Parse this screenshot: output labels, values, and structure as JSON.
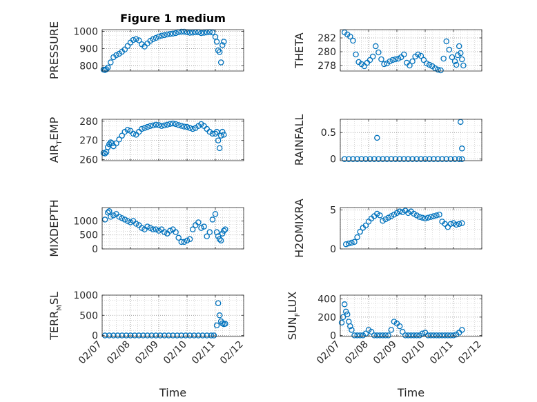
{
  "figure": {
    "title": "Figure 1 medium",
    "marker_color": "#0072BD",
    "grid_color": "#b0b0b0",
    "axes_color": "#262626",
    "xlabel": "Time",
    "x_tick_labels": [
      "02/07",
      "02/08",
      "02/09",
      "02/10",
      "02/11",
      "02/12"
    ]
  },
  "chart_data": [
    {
      "type": "scatter",
      "title": "Figure 1 medium",
      "ylabel_main": "PRESSURE",
      "ylabel_sub": "",
      "ylim": [
        770,
        1010
      ],
      "yticks": [
        800,
        900,
        1000
      ],
      "xlim": [
        0,
        5
      ],
      "xticks": [
        0,
        1,
        2,
        3,
        4,
        5
      ],
      "x": [
        0.05,
        0.1,
        0.15,
        0.2,
        0.3,
        0.4,
        0.5,
        0.6,
        0.7,
        0.8,
        0.9,
        1.0,
        1.1,
        1.2,
        1.3,
        1.4,
        1.5,
        1.6,
        1.7,
        1.8,
        1.9,
        2.0,
        2.1,
        2.2,
        2.3,
        2.4,
        2.5,
        2.6,
        2.7,
        2.8,
        2.9,
        3.0,
        3.1,
        3.2,
        3.3,
        3.4,
        3.5,
        3.6,
        3.7,
        3.8,
        3.9,
        4.0,
        4.05,
        4.1,
        4.15,
        4.2,
        4.25,
        4.3
      ],
      "y": [
        778,
        776,
        780,
        790,
        820,
        850,
        862,
        870,
        882,
        895,
        915,
        935,
        950,
        955,
        948,
        925,
        912,
        930,
        945,
        955,
        962,
        970,
        975,
        978,
        982,
        985,
        987,
        990,
        995,
        998,
        998,
        995,
        992,
        993,
        995,
        995,
        990,
        992,
        994,
        996,
        994,
        968,
        940,
        890,
        880,
        820,
        920,
        940
      ]
    },
    {
      "type": "scatter",
      "title": "",
      "ylabel_main": "THETA",
      "ylabel_sub": "",
      "ylim": [
        277.2,
        283.2
      ],
      "yticks": [
        278,
        280,
        282
      ],
      "xlim": [
        0,
        5
      ],
      "xticks": [
        0,
        1,
        2,
        3,
        4,
        5
      ],
      "x": [
        0.15,
        0.25,
        0.35,
        0.45,
        0.55,
        0.65,
        0.75,
        0.85,
        0.95,
        1.05,
        1.15,
        1.25,
        1.35,
        1.45,
        1.55,
        1.65,
        1.75,
        1.85,
        1.95,
        2.05,
        2.15,
        2.25,
        2.35,
        2.45,
        2.55,
        2.65,
        2.75,
        2.85,
        2.95,
        3.05,
        3.15,
        3.25,
        3.35,
        3.45,
        3.55,
        3.65,
        3.75,
        3.85,
        3.95,
        4.05,
        4.1,
        4.15,
        4.2,
        4.25,
        4.3,
        4.35
      ],
      "y": [
        282.8,
        282.5,
        282.2,
        281.6,
        279.6,
        278.5,
        278.2,
        277.9,
        278.4,
        278.8,
        279.3,
        280.8,
        279.9,
        278.9,
        278.2,
        278.3,
        278.6,
        278.8,
        278.9,
        279.0,
        279.2,
        279.6,
        278.4,
        278.0,
        278.6,
        279.3,
        279.6,
        279.4,
        278.8,
        278.3,
        278.1,
        277.9,
        277.6,
        277.4,
        277.3,
        279.0,
        281.5,
        280.3,
        279.2,
        278.6,
        278.1,
        279.5,
        280.8,
        279.8,
        278.9,
        278.0
      ]
    },
    {
      "type": "scatter",
      "title": "",
      "ylabel_main": "AIR",
      "ylabel_sub": "T",
      "ylabel_main2": "EMP",
      "ylim": [
        259.5,
        281
      ],
      "yticks": [
        260,
        270,
        280
      ],
      "xlim": [
        0,
        5
      ],
      "xticks": [
        0,
        1,
        2,
        3,
        4,
        5
      ],
      "x": [
        0.05,
        0.1,
        0.15,
        0.2,
        0.25,
        0.3,
        0.35,
        0.4,
        0.5,
        0.6,
        0.7,
        0.8,
        0.9,
        1.0,
        1.1,
        1.2,
        1.3,
        1.4,
        1.5,
        1.6,
        1.7,
        1.8,
        1.9,
        2.0,
        2.1,
        2.2,
        2.3,
        2.4,
        2.5,
        2.6,
        2.7,
        2.8,
        2.9,
        3.0,
        3.1,
        3.2,
        3.3,
        3.4,
        3.5,
        3.6,
        3.7,
        3.8,
        3.9,
        4.0,
        4.05,
        4.1,
        4.15,
        4.2,
        4.25,
        4.3
      ],
      "y": [
        263.5,
        263.2,
        264.0,
        266.5,
        268.0,
        269.0,
        268.5,
        267.0,
        268.5,
        270.5,
        272.5,
        274.5,
        275.5,
        275.0,
        273.5,
        273.0,
        274.5,
        276.0,
        276.5,
        277.0,
        277.5,
        277.8,
        278.2,
        278.0,
        277.5,
        277.8,
        278.2,
        278.6,
        278.8,
        278.5,
        278.0,
        277.6,
        277.2,
        277.0,
        276.5,
        276.0,
        276.5,
        277.5,
        278.5,
        277.5,
        276.0,
        274.5,
        273.5,
        273.5,
        274.5,
        270.0,
        266.0,
        272.5,
        274.5,
        273.0
      ]
    },
    {
      "type": "scatter",
      "title": "",
      "ylabel_main": "RAINFALL",
      "ylabel_sub": "",
      "ylim": [
        -0.03,
        0.75
      ],
      "yticks": [
        0,
        0.5
      ],
      "xlim": [
        0,
        5
      ],
      "xticks": [
        0,
        1,
        2,
        3,
        4,
        5
      ],
      "x": [
        0.15,
        0.3,
        0.45,
        0.6,
        0.75,
        0.9,
        1.05,
        1.2,
        1.35,
        1.5,
        1.65,
        1.8,
        1.95,
        2.1,
        2.25,
        2.4,
        2.55,
        2.7,
        2.85,
        3.0,
        3.15,
        3.3,
        3.45,
        3.6,
        3.75,
        3.9,
        4.05,
        4.2,
        4.3,
        1.3,
        4.25,
        4.3
      ],
      "y": [
        0,
        0,
        0,
        0,
        0,
        0,
        0,
        0,
        0,
        0,
        0,
        0,
        0,
        0,
        0,
        0,
        0,
        0,
        0,
        0,
        0,
        0,
        0,
        0,
        0,
        0,
        0,
        0,
        0,
        0.4,
        0.7,
        0.2
      ]
    },
    {
      "type": "scatter",
      "title": "",
      "ylabel_main": "MIXDEPTH",
      "ylabel_sub": "",
      "ylim": [
        0,
        1480
      ],
      "yticks": [
        0,
        500,
        1000
      ],
      "xlim": [
        0,
        5
      ],
      "xticks": [
        0,
        1,
        2,
        3,
        4,
        5
      ],
      "x": [
        0.1,
        0.2,
        0.25,
        0.3,
        0.4,
        0.5,
        0.6,
        0.7,
        0.8,
        0.9,
        1.0,
        1.1,
        1.2,
        1.3,
        1.4,
        1.5,
        1.6,
        1.7,
        1.8,
        1.9,
        2.0,
        2.1,
        2.2,
        2.3,
        2.4,
        2.5,
        2.6,
        2.7,
        2.8,
        2.9,
        3.0,
        3.1,
        3.2,
        3.3,
        3.4,
        3.5,
        3.6,
        3.7,
        3.8,
        3.9,
        4.0,
        4.05,
        4.1,
        4.15,
        4.2,
        4.25,
        4.3,
        4.35
      ],
      "y": [
        1050,
        1300,
        1350,
        1150,
        1200,
        1250,
        1150,
        1100,
        1050,
        1000,
        950,
        1000,
        900,
        850,
        750,
        700,
        800,
        750,
        700,
        700,
        650,
        700,
        600,
        550,
        650,
        700,
        600,
        400,
        250,
        250,
        300,
        350,
        700,
        850,
        950,
        750,
        800,
        450,
        600,
        1050,
        1250,
        600,
        450,
        350,
        300,
        550,
        650,
        700
      ]
    },
    {
      "type": "scatter",
      "title": "",
      "ylabel_main": "H2OMIXRA",
      "ylabel_sub": "",
      "ylim": [
        0,
        5.3
      ],
      "yticks": [
        0,
        5
      ],
      "xlim": [
        0,
        5
      ],
      "xticks": [
        0,
        1,
        2,
        3,
        4,
        5
      ],
      "x": [
        0.2,
        0.3,
        0.4,
        0.5,
        0.6,
        0.7,
        0.8,
        0.9,
        1.0,
        1.1,
        1.2,
        1.3,
        1.4,
        1.5,
        1.6,
        1.7,
        1.8,
        1.9,
        2.0,
        2.1,
        2.2,
        2.3,
        2.4,
        2.5,
        2.6,
        2.7,
        2.8,
        2.9,
        3.0,
        3.1,
        3.2,
        3.3,
        3.4,
        3.5,
        3.6,
        3.7,
        3.8,
        3.9,
        4.0,
        4.1,
        4.2,
        4.3
      ],
      "y": [
        0.6,
        0.7,
        0.8,
        0.9,
        1.5,
        2.2,
        2.7,
        3.0,
        3.5,
        3.9,
        4.2,
        4.5,
        4.3,
        3.6,
        3.8,
        4.0,
        4.2,
        4.4,
        4.6,
        4.8,
        4.7,
        4.9,
        4.6,
        4.8,
        4.5,
        4.3,
        4.1,
        4.0,
        3.9,
        4.0,
        4.1,
        4.2,
        4.3,
        4.4,
        3.5,
        3.2,
        2.8,
        3.2,
        3.3,
        3.1,
        3.2,
        3.3
      ]
    },
    {
      "type": "scatter",
      "title": "",
      "ylabel_main": "TERR",
      "ylabel_sub": "M",
      "ylabel_main2": "SL",
      "ylim": [
        -25,
        1000
      ],
      "yticks": [
        0,
        500,
        1000
      ],
      "xlim": [
        0,
        5
      ],
      "xticks": [
        0,
        1,
        2,
        3,
        4,
        5
      ],
      "x": [
        0.1,
        0.25,
        0.4,
        0.55,
        0.7,
        0.85,
        1.0,
        1.15,
        1.3,
        1.45,
        1.6,
        1.75,
        1.9,
        2.05,
        2.2,
        2.35,
        2.5,
        2.65,
        2.8,
        2.95,
        3.1,
        3.25,
        3.4,
        3.55,
        3.7,
        3.85,
        3.95,
        4.05,
        4.1,
        4.15,
        4.2,
        4.25,
        4.3,
        4.35
      ],
      "y": [
        0,
        0,
        0,
        0,
        0,
        0,
        0,
        0,
        0,
        0,
        0,
        0,
        0,
        0,
        0,
        0,
        0,
        0,
        0,
        0,
        0,
        0,
        0,
        0,
        0,
        0,
        0,
        250,
        800,
        500,
        350,
        300,
        280,
        290
      ]
    },
    {
      "type": "scatter",
      "title": "",
      "ylabel_main": "SUN",
      "ylabel_sub": "F",
      "ylabel_main2": "LUX",
      "ylim": [
        -12,
        440
      ],
      "yticks": [
        0,
        200,
        400
      ],
      "xlim": [
        0,
        5
      ],
      "xticks": [
        0,
        1,
        2,
        3,
        4,
        5
      ],
      "x": [
        0.05,
        0.1,
        0.15,
        0.2,
        0.25,
        0.3,
        0.35,
        0.4,
        0.5,
        0.6,
        0.7,
        0.8,
        0.9,
        1.0,
        1.1,
        1.2,
        1.3,
        1.4,
        1.5,
        1.6,
        1.7,
        1.8,
        1.9,
        2.0,
        2.1,
        2.2,
        2.3,
        2.4,
        2.5,
        2.6,
        2.7,
        2.8,
        2.9,
        3.0,
        3.1,
        3.2,
        3.3,
        3.4,
        3.5,
        3.6,
        3.7,
        3.8,
        3.9,
        4.0,
        4.1,
        4.2,
        4.3
      ],
      "y": [
        140,
        200,
        340,
        260,
        230,
        150,
        100,
        60,
        0,
        0,
        0,
        0,
        20,
        60,
        40,
        0,
        0,
        0,
        0,
        0,
        0,
        60,
        150,
        130,
        100,
        40,
        0,
        0,
        0,
        0,
        0,
        0,
        20,
        30,
        0,
        0,
        0,
        0,
        0,
        0,
        0,
        0,
        0,
        0,
        10,
        30,
        60
      ]
    }
  ]
}
